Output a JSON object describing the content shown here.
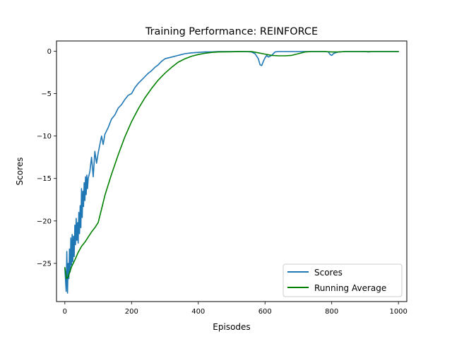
{
  "chart_data": {
    "type": "line",
    "title": "Training Performance: REINFORCE",
    "xlabel": "Episodes",
    "ylabel": "Scores",
    "xlim": [
      -25,
      1025
    ],
    "ylim": [
      -29.5,
      1.2
    ],
    "xticks": [
      0,
      200,
      400,
      600,
      800,
      1000
    ],
    "yticks": [
      0,
      -5,
      -10,
      -15,
      -20,
      -25
    ],
    "xtick_labels": [
      "0",
      "200",
      "400",
      "600",
      "800",
      "1000"
    ],
    "ytick_labels": [
      "0",
      "−5",
      "−10",
      "−15",
      "−20",
      "−25"
    ],
    "grid": false,
    "legend": {
      "position": "bottom-right"
    },
    "series": [
      {
        "name": "Scores",
        "color": "#1f77b4",
        "x": [
          0,
          4,
          6,
          8,
          10,
          12,
          14,
          16,
          18,
          20,
          22,
          24,
          26,
          28,
          30,
          32,
          34,
          36,
          38,
          40,
          42,
          44,
          46,
          48,
          50,
          52,
          54,
          56,
          58,
          60,
          62,
          64,
          66,
          68,
          70,
          75,
          80,
          85,
          90,
          95,
          100,
          105,
          110,
          115,
          120,
          130,
          140,
          150,
          160,
          170,
          180,
          190,
          200,
          210,
          220,
          230,
          240,
          250,
          260,
          270,
          280,
          290,
          300,
          320,
          340,
          360,
          380,
          400,
          420,
          440,
          460,
          480,
          500,
          520,
          540,
          560,
          570,
          580,
          585,
          590,
          595,
          600,
          605,
          610,
          620,
          630,
          640,
          660,
          680,
          700,
          720,
          740,
          760,
          780,
          790,
          795,
          800,
          805,
          810,
          820,
          840,
          860,
          880,
          900,
          910,
          920,
          940,
          960,
          980,
          1000
        ],
        "y": [
          -25.5,
          -28.3,
          -23.6,
          -28.5,
          -25.0,
          -26.8,
          -23.3,
          -26.0,
          -22.0,
          -25.2,
          -21.6,
          -24.8,
          -21.8,
          -24.2,
          -20.5,
          -22.8,
          -19.7,
          -22.3,
          -20.2,
          -22.6,
          -19.0,
          -21.5,
          -18.2,
          -20.8,
          -16.2,
          -19.6,
          -16.5,
          -18.3,
          -15.5,
          -17.6,
          -14.8,
          -16.9,
          -14.6,
          -16.2,
          -15.0,
          -14.2,
          -12.5,
          -14.8,
          -11.8,
          -13.2,
          -12.0,
          -11.0,
          -10.0,
          -11.0,
          -9.8,
          -9.0,
          -8.0,
          -7.5,
          -6.7,
          -6.3,
          -5.7,
          -5.2,
          -5.0,
          -4.3,
          -3.8,
          -3.4,
          -3.0,
          -2.6,
          -2.3,
          -1.9,
          -1.6,
          -1.2,
          -0.9,
          -0.7,
          -0.5,
          -0.3,
          -0.2,
          -0.15,
          -0.1,
          -0.1,
          -0.05,
          -0.05,
          -0.05,
          -0.05,
          -0.05,
          -0.1,
          -0.3,
          -0.9,
          -1.6,
          -1.7,
          -1.2,
          -0.8,
          -0.5,
          -0.7,
          -0.5,
          -0.1,
          -0.05,
          -0.05,
          -0.05,
          -0.05,
          -0.05,
          -0.05,
          -0.05,
          -0.05,
          -0.1,
          -0.4,
          -0.5,
          -0.3,
          -0.2,
          -0.1,
          -0.05,
          -0.05,
          -0.05,
          -0.05,
          -0.1,
          -0.05,
          -0.05,
          -0.05,
          -0.05,
          -0.05
        ]
      },
      {
        "name": "Running Average",
        "color": "#008000",
        "x": [
          0,
          5,
          10,
          15,
          20,
          30,
          40,
          50,
          60,
          70,
          80,
          90,
          100,
          110,
          120,
          140,
          160,
          180,
          200,
          220,
          240,
          260,
          280,
          300,
          320,
          340,
          360,
          380,
          400,
          420,
          440,
          460,
          480,
          500,
          520,
          540,
          560,
          580,
          600,
          620,
          640,
          660,
          680,
          700,
          720,
          740,
          760,
          780,
          800,
          820,
          840,
          860,
          880,
          900,
          920,
          940,
          960,
          980,
          1000
        ],
        "y": [
          -25.5,
          -26.8,
          -26.6,
          -26.0,
          -25.4,
          -24.6,
          -23.7,
          -23.0,
          -22.5,
          -21.9,
          -21.3,
          -20.8,
          -20.2,
          -18.6,
          -17.0,
          -14.5,
          -12.2,
          -10.1,
          -8.3,
          -6.8,
          -5.5,
          -4.4,
          -3.4,
          -2.6,
          -1.9,
          -1.3,
          -0.9,
          -0.6,
          -0.4,
          -0.25,
          -0.15,
          -0.1,
          -0.08,
          -0.07,
          -0.06,
          -0.05,
          -0.05,
          -0.2,
          -0.35,
          -0.5,
          -0.55,
          -0.55,
          -0.5,
          -0.3,
          -0.1,
          -0.05,
          -0.05,
          -0.05,
          -0.1,
          -0.1,
          -0.05,
          -0.05,
          -0.05,
          -0.05,
          -0.05,
          -0.05,
          -0.05,
          -0.05,
          -0.05
        ]
      }
    ]
  }
}
